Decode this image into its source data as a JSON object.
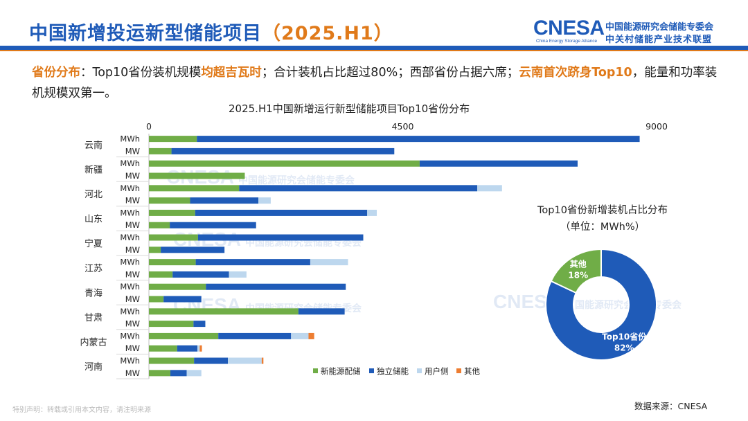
{
  "header": {
    "title_main": "中国新增投运新型储能项目",
    "title_year": "（2025.H1）",
    "logo_word": "CNESA",
    "logo_sub": "China Energy Storage Alliance",
    "logo_cn1": "中国能源研究会储能专委会",
    "logo_cn2": "中关村储能产业技术联盟"
  },
  "summary": {
    "label": "省份分布",
    "colon": "：",
    "t1": "Top10省份装机规模",
    "h1": "均超吉瓦时",
    "t2": "；合计装机占比超过80%；西部省份占据六席；",
    "h2": "云南首次跻身Top10",
    "t3": "，能量和功率装机规模双第一。"
  },
  "watermarks": [
    {
      "word": "CNESA",
      "text": "中国能源研究会储能专委会"
    },
    {
      "word": "CNESA",
      "text": "中国能源研究会储能专委会"
    },
    {
      "word": "CNESA",
      "text": "中国能源研究会储能专委会"
    },
    {
      "word": "CNESA",
      "text": "中国能源研究会储能专委会"
    }
  ],
  "footer": {
    "source": "数据来源：CNESA",
    "disclaimer": "特别声明：转载或引用本文内容，请注明来源"
  },
  "colors": {
    "green": "#70ad47",
    "blue": "#1f5bb8",
    "lightblue": "#bdd7ee",
    "orange": "#ed7d31",
    "brand": "#1f5bb8",
    "accent": "#e07a1a"
  },
  "chart_data": [
    {
      "type": "bar",
      "orientation": "horizontal",
      "stacked": true,
      "title": "2025.H1中国新增运行新型储能项目Top10省份分布",
      "xlim": [
        0,
        9000
      ],
      "x_ticks": [
        0,
        4500,
        9000
      ],
      "categories": [
        "云南",
        "新疆",
        "河北",
        "山东",
        "宁夏",
        "江苏",
        "青海",
        "甘肃",
        "内蒙古",
        "河南"
      ],
      "sub_categories": [
        "MWh",
        "MW"
      ],
      "legend_position": "bottom",
      "series": [
        {
          "name": "新能源配储",
          "color": "#70ad47",
          "MWh": [
            850,
            4800,
            1600,
            820,
            870,
            830,
            1010,
            2650,
            1230,
            800
          ],
          "MW": [
            400,
            1700,
            730,
            370,
            210,
            420,
            260,
            790,
            500,
            380
          ]
        },
        {
          "name": "独立储能",
          "color": "#1f5bb8",
          "MWh": [
            7850,
            2800,
            4220,
            3050,
            2930,
            2030,
            2480,
            820,
            1290,
            600
          ],
          "MW": [
            3950,
            0,
            1210,
            1530,
            1130,
            1000,
            670,
            210,
            360,
            290
          ]
        },
        {
          "name": "用户侧",
          "color": "#bdd7ee",
          "MWh": [
            0,
            0,
            440,
            170,
            0,
            670,
            0,
            0,
            310,
            600
          ],
          "MW": [
            0,
            0,
            220,
            0,
            0,
            310,
            0,
            0,
            40,
            260
          ]
        },
        {
          "name": "其他",
          "color": "#ed7d31",
          "MWh": [
            0,
            0,
            0,
            0,
            0,
            0,
            0,
            0,
            100,
            30
          ],
          "MW": [
            0,
            0,
            0,
            0,
            0,
            0,
            0,
            0,
            40,
            0
          ]
        }
      ]
    },
    {
      "type": "pie",
      "donut": true,
      "title": "Top10省份新增装机占比分布",
      "subtitle": "（单位：MWh%）",
      "slices": [
        {
          "label": "Top10省份",
          "value": 82,
          "value_label": "82%",
          "color": "#1f5bb8"
        },
        {
          "label": "其他",
          "value": 18,
          "value_label": "18%",
          "color": "#70ad47"
        }
      ]
    }
  ]
}
